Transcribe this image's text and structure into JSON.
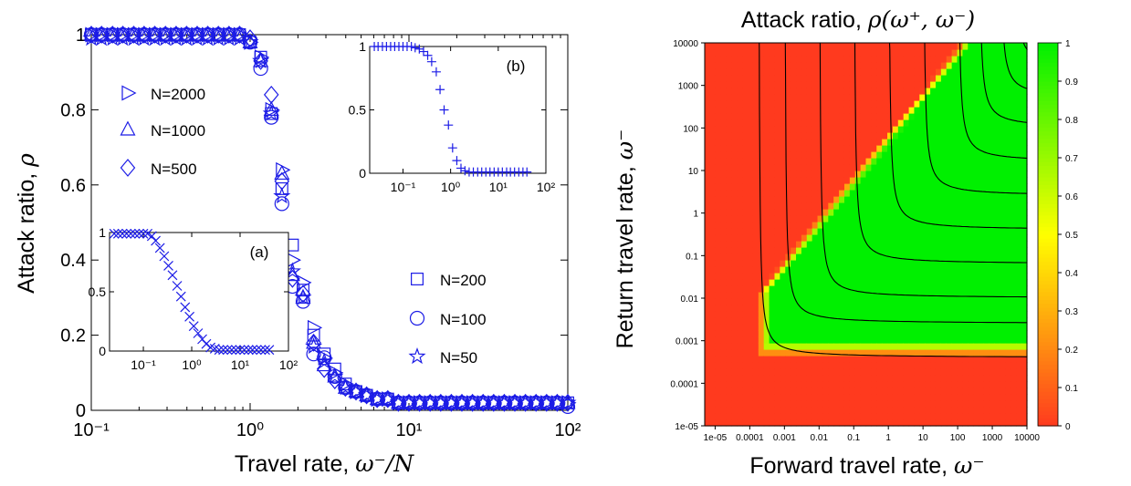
{
  "chart_data": [
    {
      "type": "scatter",
      "panel": "left",
      "xlabel_prefix": "Travel rate, ",
      "xlabel_math": "ω⁻/N",
      "ylabel_prefix": "Attack ratio, ",
      "ylabel_math": "ρ",
      "x_scale": "log",
      "xlim": [
        0.1,
        100
      ],
      "ylim": [
        0,
        1
      ],
      "x_ticks": [
        {
          "v": 0.1,
          "label": "10⁻¹"
        },
        {
          "v": 1,
          "label": "10⁰"
        },
        {
          "v": 10,
          "label": "10¹"
        },
        {
          "v": 100,
          "label": "10²"
        }
      ],
      "y_ticks": [
        {
          "v": 0,
          "label": "0"
        },
        {
          "v": 0.2,
          "label": "0.2"
        },
        {
          "v": 0.4,
          "label": "0.4"
        },
        {
          "v": 0.6,
          "label": "0.6"
        },
        {
          "v": 0.8,
          "label": "0.8"
        },
        {
          "v": 1,
          "label": "1"
        }
      ],
      "color": "#1c1ce6",
      "x": [
        0.1,
        0.116,
        0.136,
        0.158,
        0.185,
        0.215,
        0.251,
        0.293,
        0.342,
        0.398,
        0.464,
        0.541,
        0.631,
        0.736,
        0.858,
        1.0,
        1.166,
        1.36,
        1.585,
        1.848,
        2.154,
        2.512,
        2.929,
        3.415,
        3.981,
        4.642,
        5.412,
        6.31,
        7.356,
        8.577,
        10.0,
        11.66,
        13.59,
        15.85,
        18.48,
        21.54,
        25.12,
        29.29,
        34.15,
        39.81,
        46.42,
        54.12,
        63.1,
        73.56,
        85.77,
        100.0
      ],
      "series": [
        {
          "name": "N=2000",
          "marker": "triangle-right",
          "values": [
            1.0,
            1.0,
            1.0,
            1.0,
            1.0,
            1.0,
            1.0,
            1.0,
            1.0,
            1.0,
            1.0,
            1.0,
            1.0,
            1.0,
            1.0,
            0.98,
            0.94,
            0.8,
            0.64,
            0.4,
            0.34,
            0.22,
            0.14,
            0.1,
            0.07,
            0.05,
            0.04,
            0.03,
            0.03,
            0.02,
            0.02,
            0.02,
            0.02,
            0.02,
            0.02,
            0.02,
            0.02,
            0.02,
            0.02,
            0.02,
            0.02,
            0.02,
            0.02,
            0.02,
            0.02,
            0.02
          ]
        },
        {
          "name": "N=1000",
          "marker": "triangle-up",
          "values": [
            1.0,
            1.0,
            1.0,
            1.0,
            1.0,
            1.0,
            1.0,
            1.0,
            1.0,
            1.0,
            1.0,
            1.0,
            1.0,
            1.0,
            1.0,
            0.98,
            0.93,
            0.8,
            0.63,
            0.36,
            0.3,
            0.18,
            0.12,
            0.09,
            0.06,
            0.05,
            0.04,
            0.03,
            0.03,
            0.02,
            0.02,
            0.02,
            0.02,
            0.02,
            0.02,
            0.02,
            0.02,
            0.02,
            0.02,
            0.02,
            0.02,
            0.02,
            0.02,
            0.02,
            0.02,
            0.02
          ]
        },
        {
          "name": "N=500",
          "marker": "diamond",
          "values": [
            1.0,
            1.0,
            1.0,
            1.0,
            1.0,
            1.0,
            1.0,
            1.0,
            1.0,
            1.0,
            1.0,
            1.0,
            1.0,
            1.0,
            1.0,
            0.99,
            0.93,
            0.84,
            0.61,
            0.35,
            0.31,
            0.18,
            0.11,
            0.08,
            0.06,
            0.05,
            0.04,
            0.03,
            0.03,
            0.02,
            0.02,
            0.02,
            0.02,
            0.02,
            0.02,
            0.02,
            0.02,
            0.02,
            0.02,
            0.02,
            0.02,
            0.02,
            0.02,
            0.02,
            0.02,
            0.02
          ]
        },
        {
          "name": "N=200",
          "marker": "square",
          "values": [
            1.0,
            1.0,
            1.0,
            1.0,
            1.0,
            1.0,
            1.0,
            1.0,
            1.0,
            1.0,
            1.0,
            1.0,
            1.0,
            1.0,
            1.0,
            0.98,
            0.94,
            0.79,
            0.59,
            0.44,
            0.32,
            0.2,
            0.15,
            0.11,
            0.07,
            0.05,
            0.04,
            0.03,
            0.03,
            0.02,
            0.02,
            0.02,
            0.02,
            0.02,
            0.02,
            0.02,
            0.02,
            0.02,
            0.02,
            0.02,
            0.02,
            0.02,
            0.02,
            0.02,
            0.02,
            0.02
          ]
        },
        {
          "name": "N=100",
          "marker": "circle",
          "values": [
            1.0,
            1.0,
            1.0,
            1.0,
            1.0,
            1.0,
            1.0,
            1.0,
            1.0,
            1.0,
            1.0,
            1.0,
            1.0,
            1.0,
            1.0,
            0.98,
            0.91,
            0.78,
            0.55,
            0.33,
            0.29,
            0.15,
            0.14,
            0.09,
            0.06,
            0.05,
            0.04,
            0.03,
            0.03,
            0.02,
            0.02,
            0.02,
            0.02,
            0.02,
            0.02,
            0.02,
            0.02,
            0.02,
            0.02,
            0.02,
            0.02,
            0.02,
            0.02,
            0.02,
            0.02,
            0.01
          ]
        },
        {
          "name": "N=50",
          "marker": "star",
          "values": [
            0.99,
            0.99,
            0.99,
            0.99,
            0.99,
            0.99,
            0.99,
            0.99,
            0.99,
            0.99,
            0.99,
            0.99,
            0.99,
            0.99,
            0.99,
            0.98,
            0.93,
            0.79,
            0.57,
            0.37,
            0.3,
            0.17,
            0.13,
            0.09,
            0.06,
            0.05,
            0.04,
            0.03,
            0.03,
            0.02,
            0.02,
            0.02,
            0.02,
            0.02,
            0.02,
            0.02,
            0.02,
            0.02,
            0.02,
            0.02,
            0.02,
            0.02,
            0.02,
            0.02,
            0.02,
            0.02
          ]
        }
      ],
      "insets": [
        {
          "label": "(a)",
          "marker": "x",
          "x_scale": "log",
          "xlim": [
            0.02,
            100
          ],
          "ylim": [
            0,
            1
          ],
          "x_ticks": [
            {
              "v": 0.1,
              "label": "10⁻¹"
            },
            {
              "v": 1,
              "label": "10⁰"
            },
            {
              "v": 10,
              "label": "10¹"
            },
            {
              "v": 100,
              "label": "10²"
            }
          ],
          "y_ticks": [
            {
              "v": 0,
              "label": "0"
            },
            {
              "v": 0.5,
              "label": "0.5"
            },
            {
              "v": 1,
              "label": "1"
            }
          ],
          "x": [
            0.025,
            0.03,
            0.037,
            0.045,
            0.055,
            0.067,
            0.082,
            0.1,
            0.122,
            0.15,
            0.18,
            0.22,
            0.27,
            0.33,
            0.4,
            0.5,
            0.6,
            0.73,
            0.9,
            1.1,
            1.35,
            1.65,
            2.0,
            2.45,
            3.0,
            3.7,
            4.5,
            5.5,
            6.7,
            8.2,
            10.0,
            12.2,
            15.0,
            18.0,
            22.0,
            27.0,
            33.0,
            40.0
          ],
          "values": [
            0.99,
            0.99,
            0.99,
            0.99,
            0.99,
            0.99,
            0.99,
            0.99,
            0.99,
            0.97,
            0.93,
            0.87,
            0.8,
            0.72,
            0.64,
            0.55,
            0.46,
            0.37,
            0.29,
            0.21,
            0.15,
            0.1,
            0.06,
            0.03,
            0.02,
            0.01,
            0.01,
            0.01,
            0.01,
            0.01,
            0.01,
            0.01,
            0.01,
            0.01,
            0.01,
            0.01,
            0.01,
            0.01
          ]
        },
        {
          "label": "(b)",
          "marker": "plus",
          "x_scale": "log",
          "xlim": [
            0.02,
            100
          ],
          "ylim": [
            0,
            1
          ],
          "x_ticks": [
            {
              "v": 0.1,
              "label": "10⁻¹"
            },
            {
              "v": 1,
              "label": "10⁰"
            },
            {
              "v": 10,
              "label": "10¹"
            },
            {
              "v": 100,
              "label": "10²"
            }
          ],
          "y_ticks": [
            {
              "v": 0,
              "label": "0"
            },
            {
              "v": 0.5,
              "label": "0.5"
            },
            {
              "v": 1,
              "label": "1"
            }
          ],
          "x": [
            0.025,
            0.03,
            0.037,
            0.045,
            0.055,
            0.067,
            0.082,
            0.1,
            0.122,
            0.15,
            0.18,
            0.22,
            0.27,
            0.33,
            0.4,
            0.5,
            0.6,
            0.73,
            0.9,
            1.1,
            1.35,
            1.65,
            2.0,
            2.45,
            3.0,
            3.7,
            4.5,
            5.5,
            6.7,
            8.2,
            10.0,
            12.2,
            15.0,
            18.0,
            22.0,
            27.0,
            33.0,
            40.0
          ],
          "values": [
            1.0,
            1.0,
            1.0,
            1.0,
            1.0,
            1.0,
            1.0,
            1.0,
            1.0,
            1.0,
            0.99,
            0.98,
            0.96,
            0.93,
            0.88,
            0.8,
            0.66,
            0.5,
            0.38,
            0.2,
            0.1,
            0.04,
            0.02,
            0.01,
            0.01,
            0.01,
            0.01,
            0.01,
            0.01,
            0.01,
            0.01,
            0.01,
            0.01,
            0.01,
            0.01,
            0.01,
            0.01,
            0.01
          ]
        }
      ]
    },
    {
      "type": "heatmap",
      "panel": "right",
      "title_prefix": "Attack ratio, ",
      "title_math": "ρ(ω⁺, ω⁻)",
      "xlabel_prefix": "Forward travel rate, ",
      "xlabel_math": "ω⁻",
      "ylabel_prefix": "Return travel rate, ",
      "ylabel_math": "ω⁻",
      "x_scale": "log",
      "y_scale": "log",
      "xlim": [
        5e-06,
        10000
      ],
      "ylim": [
        1e-05,
        10000
      ],
      "x_tick_labels": [
        "1e-05",
        "0.0001",
        "0.001",
        "0.01",
        "0.1",
        "1",
        "10",
        "100",
        "1000",
        "10000"
      ],
      "y_tick_labels": [
        "1e-05",
        "0.0001",
        "0.001",
        "0.01",
        "0.1",
        "1",
        "10",
        "100",
        "1000",
        "10000"
      ],
      "colorbar_ticks": [
        "0",
        "0.1",
        "0.2",
        "0.3",
        "0.4",
        "0.5",
        "0.6",
        "0.7",
        "0.8",
        "0.9",
        "1"
      ],
      "colormap": {
        "low": "#ff3a1e",
        "mid": "#ffff00",
        "high": "#00f000"
      },
      "contour_color": "#000000"
    }
  ]
}
